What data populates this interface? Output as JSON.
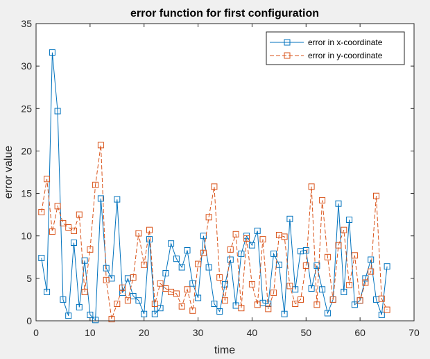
{
  "chart_data": {
    "type": "line",
    "title": "error function for first configuration",
    "xlabel": "time",
    "ylabel": "error value",
    "xlim": [
      0,
      70
    ],
    "ylim": [
      0,
      35
    ],
    "xticks": [
      0,
      10,
      20,
      30,
      40,
      50,
      60,
      70
    ],
    "yticks": [
      0,
      5,
      10,
      15,
      20,
      25,
      30,
      35
    ],
    "grid": false,
    "legend_position": "top-right",
    "series": [
      {
        "name": "error in x-coordinate",
        "color": "#0072BD",
        "line_style": "solid",
        "marker": "square",
        "x": [
          1,
          2,
          3,
          4,
          5,
          6,
          7,
          8,
          9,
          10,
          11,
          12,
          13,
          14,
          15,
          16,
          17,
          18,
          19,
          20,
          21,
          22,
          23,
          24,
          25,
          26,
          27,
          28,
          29,
          30,
          31,
          32,
          33,
          34,
          35,
          36,
          37,
          38,
          39,
          40,
          41,
          42,
          43,
          44,
          45,
          46,
          47,
          48,
          49,
          50,
          51,
          52,
          53,
          54,
          55,
          56,
          57,
          58,
          59,
          60,
          61,
          62,
          63,
          64,
          65
        ],
        "values": [
          7.4,
          3.4,
          31.6,
          24.7,
          2.5,
          0.6,
          9.2,
          1.6,
          7.1,
          0.7,
          0.1,
          14.4,
          6.2,
          5.0,
          14.3,
          3.3,
          5.0,
          2.9,
          2.4,
          0.8,
          9.6,
          0.8,
          1.5,
          5.6,
          9.1,
          7.3,
          6.3,
          8.3,
          4.4,
          2.7,
          10.0,
          6.3,
          2.0,
          1.1,
          4.3,
          7.2,
          1.8,
          7.9,
          10.0,
          8.9,
          10.6,
          2.1,
          2.0,
          7.9,
          6.6,
          0.8,
          12.0,
          3.7,
          8.2,
          8.3,
          3.8,
          6.5,
          3.7,
          0.9,
          2.5,
          13.8,
          3.4,
          11.9,
          1.9,
          2.4,
          5.0,
          7.2,
          2.5,
          0.7,
          6.4
        ]
      },
      {
        "name": "error in y-coordinate",
        "color": "#D95319",
        "line_style": "dashed",
        "marker": "square",
        "x": [
          1,
          2,
          3,
          4,
          5,
          6,
          7,
          8,
          9,
          10,
          11,
          12,
          13,
          14,
          15,
          16,
          17,
          18,
          19,
          20,
          21,
          22,
          23,
          24,
          25,
          26,
          27,
          28,
          29,
          30,
          31,
          32,
          33,
          34,
          35,
          36,
          37,
          38,
          39,
          40,
          41,
          42,
          43,
          44,
          45,
          46,
          47,
          48,
          49,
          50,
          51,
          52,
          53,
          54,
          55,
          56,
          57,
          58,
          59,
          60,
          61,
          62,
          63,
          64,
          65
        ],
        "values": [
          12.8,
          16.7,
          10.5,
          13.5,
          11.5,
          11.0,
          10.6,
          12.5,
          3.4,
          8.4,
          16.0,
          20.7,
          4.8,
          0.2,
          2.0,
          3.9,
          2.4,
          5.1,
          10.3,
          6.6,
          10.7,
          2.0,
          4.4,
          3.8,
          3.4,
          3.2,
          1.7,
          3.7,
          1.2,
          6.7,
          8.0,
          12.2,
          15.8,
          5.1,
          2.4,
          8.4,
          10.2,
          1.5,
          9.7,
          4.3,
          1.9,
          9.6,
          1.4,
          3.3,
          10.1,
          9.9,
          4.1,
          2.0,
          2.5,
          6.5,
          15.8,
          1.9,
          14.2,
          7.5,
          2.5,
          8.9,
          10.7,
          4.2,
          7.7,
          2.4,
          4.5,
          5.8,
          14.7,
          2.6,
          1.3
        ]
      }
    ]
  }
}
